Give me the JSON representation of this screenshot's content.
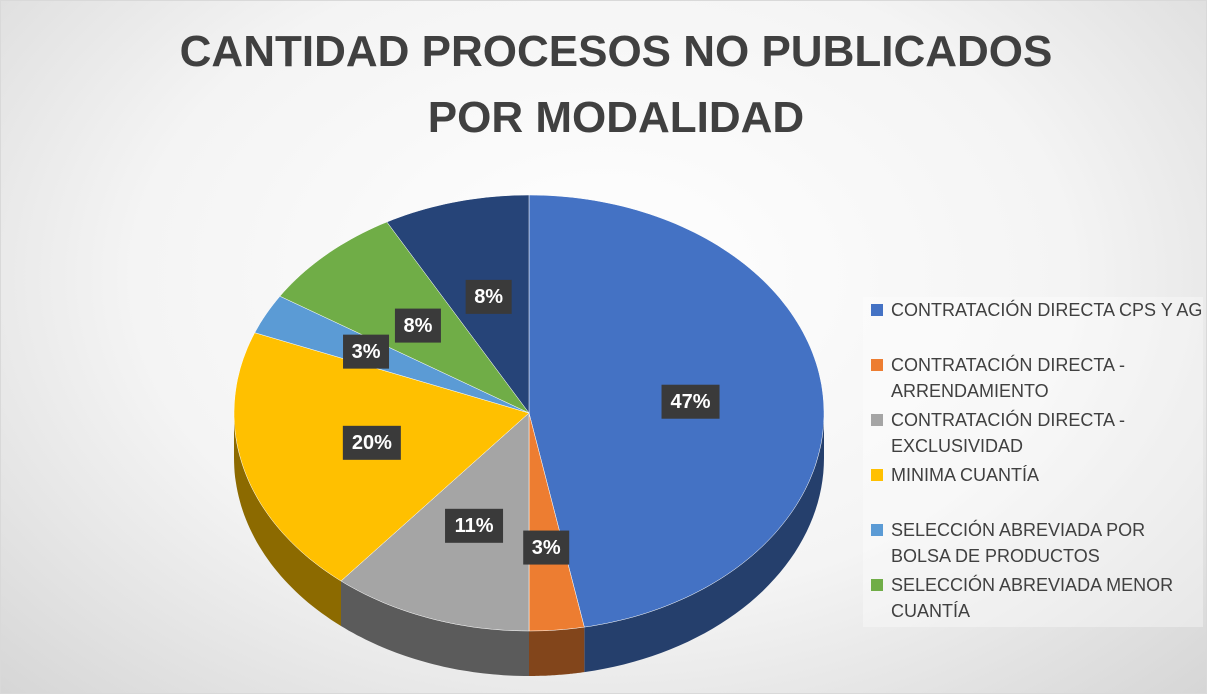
{
  "chart_data": {
    "type": "pie",
    "title": "CANTIDAD PROCESOS NO PUBLICADOS POR MODALIDAD",
    "categories": [
      "CONTRATACIÓN DIRECTA CPS Y AG",
      "CONTRATACIÓN DIRECTA - ARRENDAMIENTO",
      "CONTRATACIÓN DIRECTA - EXCLUSIVIDAD",
      "MINIMA CUANTÍA",
      "SELECCIÓN ABREVIADA POR BOLSA DE PRODUCTOS",
      "SELECCIÓN ABREVIADA MENOR CUANTÍA",
      null
    ],
    "values": [
      47,
      3,
      11,
      20,
      3,
      8,
      8
    ],
    "value_labels": [
      "47%",
      "3%",
      "11%",
      "20%",
      "3%",
      "8%",
      "8%"
    ],
    "colors": [
      "#4472c4",
      "#ed7d31",
      "#a5a5a5",
      "#ffc000",
      "#5b9bd5",
      "#70ad47",
      "#264478"
    ]
  }
}
